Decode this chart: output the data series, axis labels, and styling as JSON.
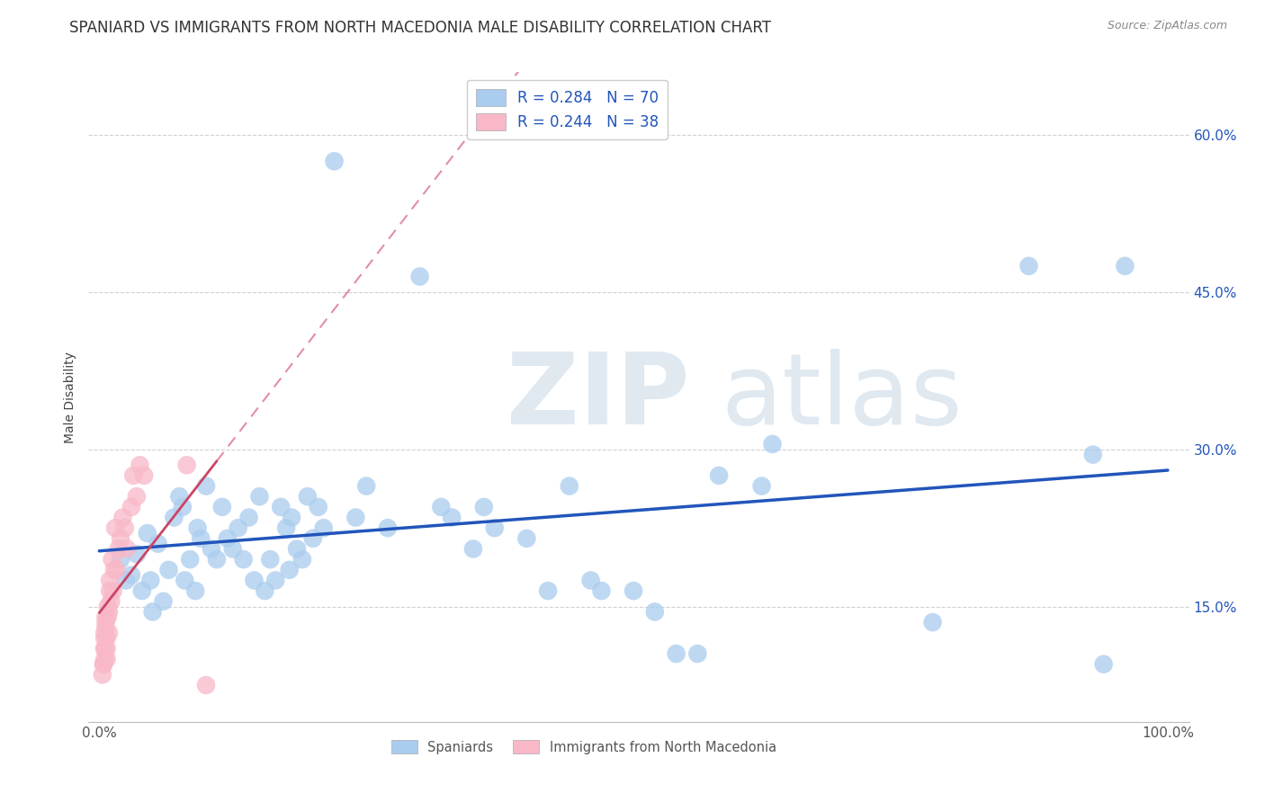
{
  "title": "SPANIARD VS IMMIGRANTS FROM NORTH MACEDONIA MALE DISABILITY CORRELATION CHART",
  "source": "Source: ZipAtlas.com",
  "ylabel": "Male Disability",
  "watermark_zip": "ZIP",
  "watermark_atlas": "atlas",
  "legend_entries": [
    {
      "label": "Spaniards",
      "R": 0.284,
      "N": 70,
      "color": "#aaccee",
      "line_color": "#2255bb"
    },
    {
      "label": "Immigrants from North Macedonia",
      "R": 0.244,
      "N": 38,
      "color": "#f8b8c8",
      "line_color": "#cc4466"
    }
  ],
  "y_ticks": [
    0.15,
    0.3,
    0.45,
    0.6
  ],
  "y_tick_labels": [
    "15.0%",
    "30.0%",
    "45.0%",
    "60.0%"
  ],
  "xlim": [
    -0.01,
    1.02
  ],
  "ylim": [
    0.04,
    0.66
  ],
  "spaniards_x": [
    0.02,
    0.025,
    0.03,
    0.035,
    0.04,
    0.045,
    0.048,
    0.05,
    0.055,
    0.06,
    0.065,
    0.07,
    0.075,
    0.078,
    0.08,
    0.085,
    0.09,
    0.092,
    0.095,
    0.1,
    0.105,
    0.11,
    0.115,
    0.12,
    0.125,
    0.13,
    0.135,
    0.14,
    0.145,
    0.15,
    0.155,
    0.16,
    0.165,
    0.17,
    0.175,
    0.178,
    0.18,
    0.185,
    0.19,
    0.195,
    0.2,
    0.205,
    0.21,
    0.22,
    0.24,
    0.25,
    0.27,
    0.3,
    0.32,
    0.33,
    0.35,
    0.36,
    0.37,
    0.4,
    0.42,
    0.44,
    0.46,
    0.47,
    0.5,
    0.52,
    0.54,
    0.56,
    0.58,
    0.62,
    0.63,
    0.78,
    0.87,
    0.93,
    0.94,
    0.96
  ],
  "spaniards_y": [
    0.195,
    0.175,
    0.18,
    0.2,
    0.165,
    0.22,
    0.175,
    0.145,
    0.21,
    0.155,
    0.185,
    0.235,
    0.255,
    0.245,
    0.175,
    0.195,
    0.165,
    0.225,
    0.215,
    0.265,
    0.205,
    0.195,
    0.245,
    0.215,
    0.205,
    0.225,
    0.195,
    0.235,
    0.175,
    0.255,
    0.165,
    0.195,
    0.175,
    0.245,
    0.225,
    0.185,
    0.235,
    0.205,
    0.195,
    0.255,
    0.215,
    0.245,
    0.225,
    0.575,
    0.235,
    0.265,
    0.225,
    0.465,
    0.245,
    0.235,
    0.205,
    0.245,
    0.225,
    0.215,
    0.165,
    0.265,
    0.175,
    0.165,
    0.165,
    0.145,
    0.105,
    0.105,
    0.275,
    0.265,
    0.305,
    0.135,
    0.475,
    0.295,
    0.095,
    0.475
  ],
  "north_mac_x": [
    0.003,
    0.004,
    0.004,
    0.005,
    0.005,
    0.005,
    0.005,
    0.005,
    0.006,
    0.006,
    0.006,
    0.007,
    0.007,
    0.007,
    0.008,
    0.008,
    0.009,
    0.009,
    0.01,
    0.01,
    0.011,
    0.012,
    0.013,
    0.014,
    0.015,
    0.016,
    0.018,
    0.02,
    0.022,
    0.024,
    0.026,
    0.03,
    0.032,
    0.035,
    0.038,
    0.042,
    0.082,
    0.1
  ],
  "north_mac_y": [
    0.085,
    0.095,
    0.095,
    0.1,
    0.11,
    0.11,
    0.12,
    0.125,
    0.13,
    0.135,
    0.14,
    0.1,
    0.11,
    0.12,
    0.14,
    0.15,
    0.145,
    0.125,
    0.175,
    0.165,
    0.155,
    0.195,
    0.165,
    0.185,
    0.225,
    0.185,
    0.205,
    0.215,
    0.235,
    0.225,
    0.205,
    0.245,
    0.275,
    0.255,
    0.285,
    0.275,
    0.285,
    0.075
  ],
  "grid_color": "#cccccc",
  "background_color": "#ffffff",
  "title_fontsize": 12,
  "axis_label_fontsize": 10,
  "tick_fontsize": 11
}
